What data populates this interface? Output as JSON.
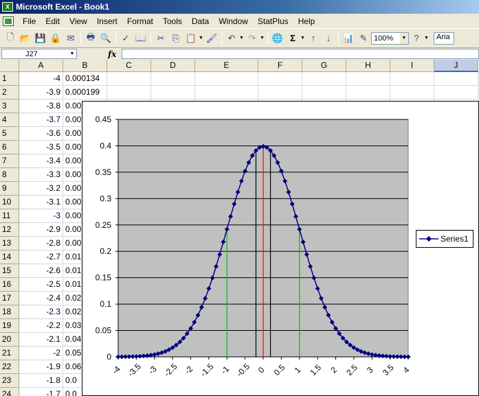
{
  "window": {
    "title": "Microsoft Excel - Book1",
    "app_icon": "X"
  },
  "menu": [
    "File",
    "Edit",
    "View",
    "Insert",
    "Format",
    "Tools",
    "Data",
    "Window",
    "StatPlus",
    "Help"
  ],
  "toolbar": {
    "zoom": "100%",
    "font": "Aria"
  },
  "namebox": {
    "value": "J27"
  },
  "formula": {
    "fx": "fx",
    "value": ""
  },
  "columns": [
    "A",
    "B",
    "C",
    "D",
    "E",
    "F",
    "G",
    "H",
    "I",
    "J"
  ],
  "rows": [
    {
      "n": "1",
      "a": "-4",
      "b": "0.000134"
    },
    {
      "n": "2",
      "a": "-3.9",
      "b": "0.000199"
    },
    {
      "n": "3",
      "a": "-3.8",
      "b": "0.00"
    },
    {
      "n": "4",
      "a": "-3.7",
      "b": "0.00"
    },
    {
      "n": "5",
      "a": "-3.6",
      "b": "0.00"
    },
    {
      "n": "6",
      "a": "-3.5",
      "b": "0.00"
    },
    {
      "n": "7",
      "a": "-3.4",
      "b": "0.00"
    },
    {
      "n": "8",
      "a": "-3.3",
      "b": "0.00"
    },
    {
      "n": "9",
      "a": "-3.2",
      "b": "0.00"
    },
    {
      "n": "10",
      "a": "-3.1",
      "b": "0.00"
    },
    {
      "n": "11",
      "a": "-3",
      "b": "0.00"
    },
    {
      "n": "12",
      "a": "-2.9",
      "b": "0.00"
    },
    {
      "n": "13",
      "a": "-2.8",
      "b": "0.00"
    },
    {
      "n": "14",
      "a": "-2.7",
      "b": "0.01"
    },
    {
      "n": "15",
      "a": "-2.6",
      "b": "0.01"
    },
    {
      "n": "16",
      "a": "-2.5",
      "b": "0.01"
    },
    {
      "n": "17",
      "a": "-2.4",
      "b": "0.02"
    },
    {
      "n": "18",
      "a": "-2.3",
      "b": "0.02"
    },
    {
      "n": "19",
      "a": "-2.2",
      "b": "0.03"
    },
    {
      "n": "20",
      "a": "-2.1",
      "b": "0.04"
    },
    {
      "n": "21",
      "a": "-2",
      "b": "0.05"
    },
    {
      "n": "22",
      "a": "-1.9",
      "b": "0.06"
    },
    {
      "n": "23",
      "a": "-1.8",
      "b": "0.0"
    },
    {
      "n": "24",
      "a": "-1.7",
      "b": "0.0"
    }
  ],
  "chart_data": {
    "type": "line",
    "series": [
      {
        "name": "Series1",
        "function": "standard normal pdf",
        "x_start": -4,
        "x_end": 4,
        "x_step": 0.1
      }
    ],
    "ylim": [
      0,
      0.45
    ],
    "yticks": [
      "0",
      "0.05",
      "0.1",
      "0.15",
      "0.2",
      "0.25",
      "0.3",
      "0.35",
      "0.4",
      "0.45"
    ],
    "xticks": [
      "-4",
      "-3.5",
      "-3",
      "-2.5",
      "-2",
      "-1.5",
      "-1",
      "-0.5",
      "0",
      "0.5",
      "1",
      "1.5",
      "2",
      "2.5",
      "3",
      "3.5",
      "4"
    ],
    "vertical_lines": [
      {
        "x": 0,
        "color": "#ff0000"
      },
      {
        "x": -1,
        "color": "#00c000"
      },
      {
        "x": 1,
        "color": "#00c000"
      },
      {
        "x": -0.2,
        "color": "#000000"
      },
      {
        "x": 0.2,
        "color": "#000000"
      }
    ],
    "plot_bg": "#c0c0c0",
    "line_color": "#000080",
    "legend": "right",
    "grid": true
  }
}
